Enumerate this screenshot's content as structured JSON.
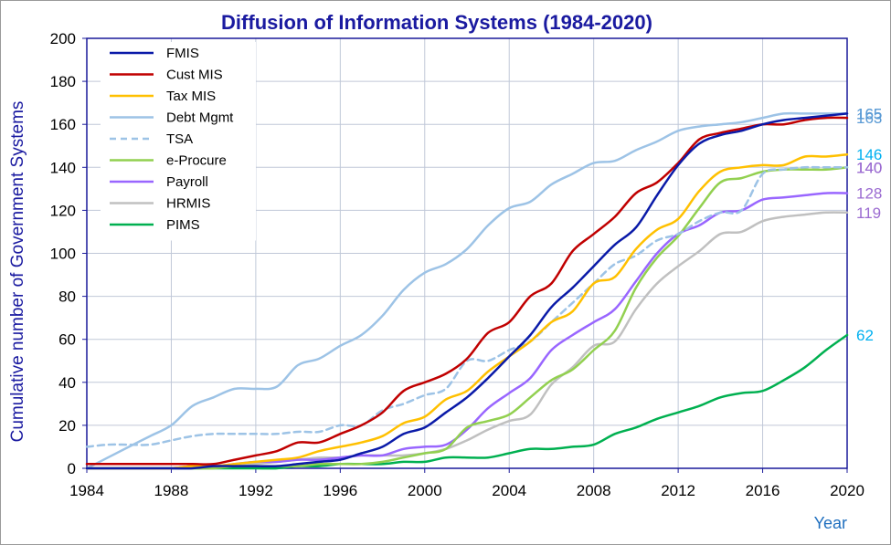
{
  "chart_data": {
    "type": "line",
    "title": "Diffusion of Information Systems (1984-2020)",
    "xlabel": "Year",
    "ylabel": "Cumulative number of Government Systems",
    "xlim": [
      1984,
      2020
    ],
    "ylim": [
      0,
      200
    ],
    "xticks": [
      1984,
      1988,
      1992,
      1996,
      2000,
      2004,
      2008,
      2012,
      2016,
      2020
    ],
    "yticks": [
      0,
      20,
      40,
      60,
      80,
      100,
      120,
      140,
      160,
      180,
      200
    ],
    "grid": true,
    "legend_position": "top-left",
    "x": [
      1984,
      1985,
      1986,
      1987,
      1988,
      1989,
      1990,
      1991,
      1992,
      1993,
      1994,
      1995,
      1996,
      1997,
      1998,
      1999,
      2000,
      2001,
      2002,
      2003,
      2004,
      2005,
      2006,
      2007,
      2008,
      2009,
      2010,
      2011,
      2012,
      2013,
      2014,
      2015,
      2016,
      2017,
      2018,
      2019,
      2020
    ],
    "series": [
      {
        "name": "FMIS",
        "color": "#0a1aa8",
        "dash": false,
        "label_color": "#5b9bd5",
        "end_label": "165",
        "values": [
          0,
          0,
          0,
          0,
          0,
          0,
          1,
          1,
          1,
          1,
          2,
          3,
          4,
          7,
          10,
          16,
          19,
          26,
          33,
          42,
          52,
          62,
          75,
          84,
          94,
          104,
          112,
          127,
          141,
          151,
          155,
          157,
          160,
          162,
          163,
          164,
          165
        ]
      },
      {
        "name": "Cust MIS",
        "color": "#c00000",
        "dash": false,
        "label_color": "#5b9bd5",
        "end_label": "163",
        "values": [
          2,
          2,
          2,
          2,
          2,
          2,
          2,
          4,
          6,
          8,
          12,
          12,
          16,
          20,
          26,
          36,
          40,
          44,
          51,
          63,
          68,
          80,
          86,
          101,
          109,
          117,
          128,
          133,
          142,
          153,
          156,
          158,
          160,
          160,
          162,
          163,
          163
        ]
      },
      {
        "name": "Tax MIS",
        "color": "#ffc000",
        "dash": false,
        "label_color": "#00b0f0",
        "end_label": "146",
        "values": [
          0,
          0,
          0,
          0,
          0,
          1,
          1,
          2,
          3,
          4,
          5,
          8,
          10,
          12,
          15,
          21,
          24,
          32,
          36,
          45,
          52,
          59,
          68,
          73,
          86,
          89,
          102,
          111,
          116,
          129,
          138,
          140,
          141,
          141,
          145,
          145,
          146
        ]
      },
      {
        "name": "Debt Mgmt",
        "color": "#9dc3e6",
        "dash": false,
        "label_color": "#5b9bd5",
        "end_label": "165",
        "values": [
          0,
          5,
          10,
          15,
          20,
          29,
          33,
          37,
          37,
          38,
          48,
          51,
          57,
          62,
          71,
          83,
          91,
          95,
          102,
          113,
          121,
          124,
          132,
          137,
          142,
          143,
          148,
          152,
          157,
          159,
          160,
          161,
          163,
          165,
          165,
          165,
          165
        ]
      },
      {
        "name": "TSA",
        "color": "#9dc3e6",
        "dash": true,
        "label_color": "#9b6bd1",
        "end_label": "140",
        "values": [
          10,
          11,
          11,
          11,
          13,
          15,
          16,
          16,
          16,
          16,
          17,
          17,
          20,
          20,
          27,
          30,
          34,
          37,
          50,
          50,
          55,
          59,
          68,
          77,
          86,
          95,
          99,
          106,
          109,
          115,
          119,
          120,
          137,
          139,
          140,
          140,
          140
        ]
      },
      {
        "name": "e-Procure",
        "color": "#92d050",
        "dash": false,
        "label_color": "#9b6bd1",
        "end_label": "140",
        "values": [
          0,
          0,
          0,
          0,
          0,
          0,
          0,
          1,
          1,
          1,
          1,
          2,
          2,
          2,
          3,
          5,
          7,
          9,
          19,
          22,
          25,
          33,
          41,
          46,
          55,
          64,
          84,
          98,
          108,
          121,
          133,
          135,
          138,
          139,
          139,
          139,
          140
        ]
      },
      {
        "name": "Payroll",
        "color": "#9966ff",
        "dash": false,
        "label_color": "#9b6bd1",
        "end_label": "128",
        "values": [
          0,
          0,
          0,
          0,
          0,
          1,
          1,
          2,
          3,
          3,
          4,
          4,
          5,
          6,
          6,
          9,
          10,
          11,
          18,
          28,
          35,
          42,
          55,
          62,
          68,
          74,
          87,
          100,
          109,
          113,
          119,
          120,
          125,
          126,
          127,
          128,
          128
        ]
      },
      {
        "name": "HRMIS",
        "color": "#c0c0c0",
        "dash": false,
        "label_color": "#9b6bd1",
        "end_label": "119",
        "values": [
          0,
          0,
          0,
          0,
          0,
          0,
          1,
          1,
          2,
          3,
          4,
          5,
          5,
          6,
          6,
          6,
          7,
          9,
          13,
          18,
          22,
          25,
          39,
          47,
          57,
          59,
          74,
          86,
          94,
          101,
          109,
          110,
          115,
          117,
          118,
          119,
          119
        ]
      },
      {
        "name": "PIMS",
        "color": "#00b050",
        "dash": false,
        "label_color": "#00b0f0",
        "end_label": "62",
        "values": [
          0,
          0,
          0,
          0,
          0,
          0,
          0,
          0,
          0,
          0,
          1,
          1,
          2,
          2,
          2,
          3,
          3,
          5,
          5,
          5,
          7,
          9,
          9,
          10,
          11,
          16,
          19,
          23,
          26,
          29,
          33,
          35,
          36,
          41,
          47,
          55,
          62
        ]
      }
    ]
  }
}
